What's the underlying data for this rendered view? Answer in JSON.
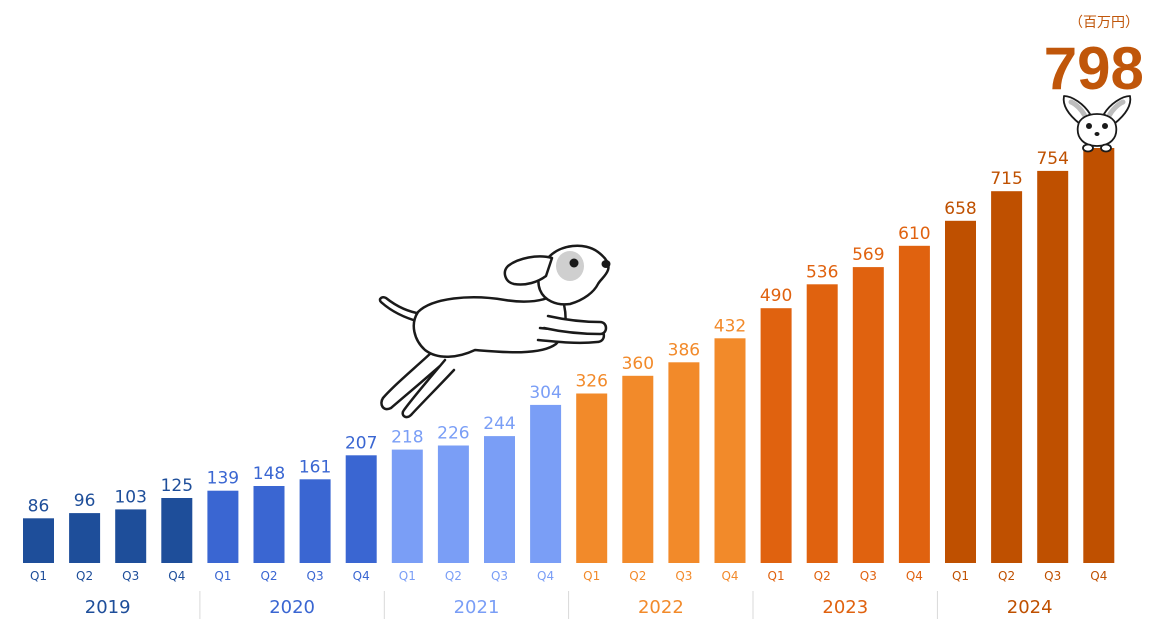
{
  "chart_data": {
    "type": "bar",
    "unit": "（百万円）",
    "title": "",
    "xlabel": "",
    "ylabel": "",
    "ylim": [
      0,
      800
    ],
    "grid": false,
    "legend": "none",
    "categories": [
      "Q1",
      "Q2",
      "Q3",
      "Q4",
      "Q1",
      "Q2",
      "Q3",
      "Q4",
      "Q1",
      "Q2",
      "Q3",
      "Q4",
      "Q1",
      "Q2",
      "Q3",
      "Q4",
      "Q1",
      "Q2",
      "Q3",
      "Q4",
      "Q1",
      "Q2",
      "Q3",
      "Q4"
    ],
    "values": [
      86,
      96,
      103,
      125,
      139,
      148,
      161,
      207,
      218,
      226,
      244,
      304,
      326,
      360,
      386,
      432,
      490,
      536,
      569,
      610,
      658,
      715,
      754,
      798
    ],
    "years": [
      "2019",
      "2020",
      "2021",
      "2022",
      "2023",
      "2024"
    ],
    "year_colors": {
      "2019": "#1e4e9a",
      "2020": "#3a66d2",
      "2021": "#7a9ef6",
      "2022": "#f28a2a",
      "2023": "#e0620f",
      "2024": "#bf5000"
    },
    "highlight": {
      "index": 23,
      "label": "798",
      "color": "#c0560a"
    },
    "illustrations": [
      "jumping-dog-icon",
      "chihuahua-icon"
    ]
  }
}
